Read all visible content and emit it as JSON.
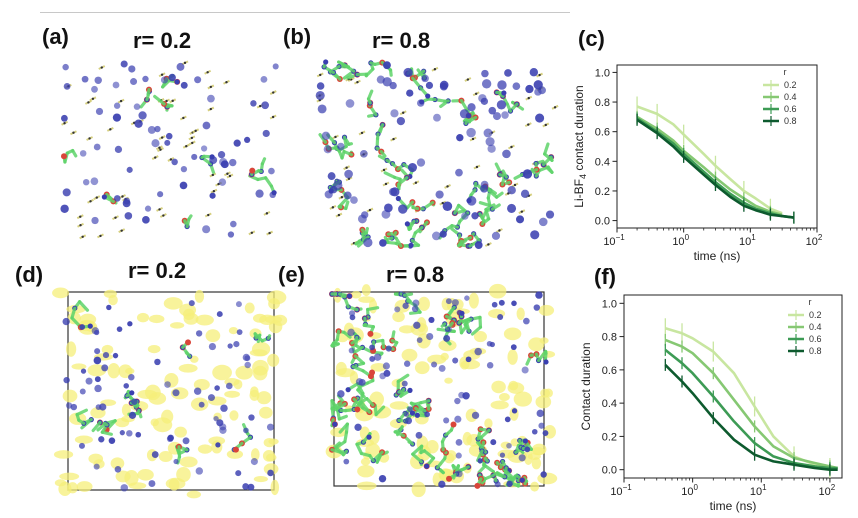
{
  "panels": {
    "a": {
      "label": "(a)",
      "title": "r= 0.2"
    },
    "b": {
      "label": "(b)",
      "title": "r= 0.8"
    },
    "c": {
      "label": "(c)"
    },
    "d": {
      "label": "(d)",
      "title": "r= 0.2"
    },
    "e": {
      "label": "(e)",
      "title": "r= 0.8"
    },
    "f": {
      "label": "(f)"
    }
  },
  "colors": {
    "r02": "#c8e6a0",
    "r04": "#86c873",
    "r06": "#3d9b55",
    "r08": "#0d5a2e",
    "lithium": "#3a3fb0",
    "oxygen": "#d9453a",
    "polymer": "#5fd46a",
    "anion": "#f5ef7a"
  },
  "chart_data": [
    {
      "type": "line",
      "panel": "c",
      "title": "",
      "xlabel": "time (ns)",
      "ylabel": "Li-BF4 contact duration",
      "ylabel_main": "Li-BF",
      "ylabel_sub": "4",
      "ylabel_rest": " contact duration",
      "xscale": "log",
      "xlim": [
        0.1,
        100
      ],
      "ylim": [
        -0.05,
        1.05
      ],
      "xticks": [
        {
          "value": 0.1,
          "base": "10",
          "exp": "−1"
        },
        {
          "value": 1,
          "base": "10",
          "exp": "0"
        },
        {
          "value": 10,
          "base": "10",
          "exp": "1"
        },
        {
          "value": 100,
          "base": "10",
          "exp": "2"
        }
      ],
      "yticks": [
        {
          "value": 0.0,
          "label": "0.0"
        },
        {
          "value": 0.2,
          "label": "0.2"
        },
        {
          "value": 0.4,
          "label": "0.4"
        },
        {
          "value": 0.6,
          "label": "0.6"
        },
        {
          "value": 0.8,
          "label": "0.8"
        },
        {
          "value": 1.0,
          "label": "1.0"
        }
      ],
      "legend_title": "r",
      "legend_position": "top-right",
      "series": [
        {
          "name": "0.2",
          "color": "#c8e6a0",
          "x": [
            0.2,
            0.4,
            0.7,
            1,
            2,
            3,
            5,
            8,
            12,
            20,
            30
          ],
          "y": [
            0.77,
            0.72,
            0.65,
            0.58,
            0.45,
            0.37,
            0.28,
            0.2,
            0.15,
            0.08,
            0.05
          ]
        },
        {
          "name": "0.4",
          "color": "#86c873",
          "x": [
            0.2,
            0.4,
            0.7,
            1,
            2,
            3,
            5,
            8,
            12,
            20,
            30
          ],
          "y": [
            0.7,
            0.62,
            0.54,
            0.47,
            0.36,
            0.29,
            0.21,
            0.15,
            0.1,
            0.06,
            0.04
          ]
        },
        {
          "name": "0.6",
          "color": "#3d9b55",
          "x": [
            0.2,
            0.4,
            0.7,
            1,
            2,
            3,
            5,
            8,
            12,
            20,
            30,
            45
          ],
          "y": [
            0.69,
            0.6,
            0.52,
            0.45,
            0.33,
            0.26,
            0.18,
            0.12,
            0.08,
            0.05,
            0.03,
            0.02
          ]
        },
        {
          "name": "0.8",
          "color": "#0d5a2e",
          "x": [
            0.2,
            0.4,
            0.7,
            1,
            2,
            3,
            5,
            8,
            12,
            20,
            30,
            45
          ],
          "y": [
            0.68,
            0.59,
            0.5,
            0.43,
            0.31,
            0.24,
            0.16,
            0.1,
            0.07,
            0.04,
            0.03,
            0.02
          ]
        }
      ]
    },
    {
      "type": "line",
      "panel": "f",
      "title": "",
      "xlabel": "time (ns)",
      "ylabel": "Contact duration",
      "xscale": "log",
      "xlim": [
        0.1,
        150
      ],
      "ylim": [
        -0.05,
        1.05
      ],
      "xticks": [
        {
          "value": 0.1,
          "base": "10",
          "exp": "−1"
        },
        {
          "value": 1,
          "base": "10",
          "exp": "0"
        },
        {
          "value": 10,
          "base": "10",
          "exp": "1"
        },
        {
          "value": 100,
          "base": "10",
          "exp": "2"
        }
      ],
      "yticks": [
        {
          "value": 0.0,
          "label": "0.0"
        },
        {
          "value": 0.2,
          "label": "0.2"
        },
        {
          "value": 0.4,
          "label": "0.4"
        },
        {
          "value": 0.6,
          "label": "0.6"
        },
        {
          "value": 0.8,
          "label": "0.8"
        },
        {
          "value": 1.0,
          "label": "1.0"
        }
      ],
      "legend_title": "r",
      "legend_position": "top-right",
      "series": [
        {
          "name": "0.2",
          "color": "#c8e6a0",
          "x": [
            0.4,
            0.7,
            1,
            2,
            4,
            8,
            15,
            30,
            60,
            100,
            130
          ],
          "y": [
            0.85,
            0.82,
            0.79,
            0.71,
            0.58,
            0.38,
            0.2,
            0.08,
            0.03,
            0.01,
            0.01
          ]
        },
        {
          "name": "0.4",
          "color": "#86c873",
          "x": [
            0.4,
            0.7,
            1,
            2,
            4,
            8,
            15,
            30,
            60,
            100,
            130
          ],
          "y": [
            0.78,
            0.74,
            0.7,
            0.58,
            0.42,
            0.26,
            0.14,
            0.07,
            0.04,
            0.02,
            0.01
          ]
        },
        {
          "name": "0.6",
          "color": "#3d9b55",
          "x": [
            0.4,
            0.7,
            1,
            2,
            4,
            8,
            15,
            30,
            60,
            100,
            130
          ],
          "y": [
            0.72,
            0.64,
            0.58,
            0.44,
            0.29,
            0.16,
            0.08,
            0.04,
            0.02,
            0.01,
            0.01
          ]
        },
        {
          "name": "0.8",
          "color": "#0d5a2e",
          "x": [
            0.4,
            0.7,
            1,
            2,
            4,
            8,
            15,
            30,
            60,
            100,
            130
          ],
          "y": [
            0.63,
            0.53,
            0.46,
            0.31,
            0.18,
            0.09,
            0.05,
            0.03,
            0.01,
            0.0,
            0.0
          ]
        }
      ]
    }
  ]
}
